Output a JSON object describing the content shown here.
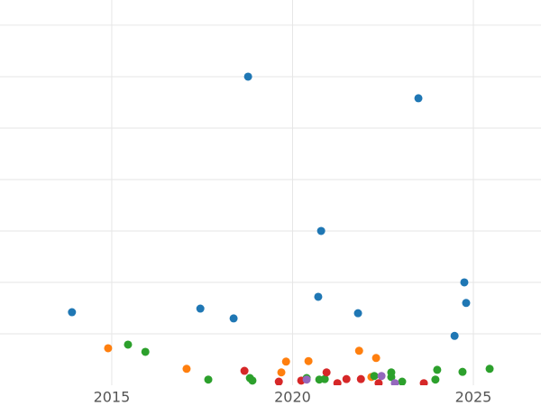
{
  "chart_data": {
    "type": "scatter",
    "xlim": [
      2011.91,
      2026.87
    ],
    "ylim": [
      0,
      7.49
    ],
    "xticks": [
      2015,
      2020,
      2025
    ],
    "ygrid_lines": [
      1,
      2,
      3,
      4,
      5,
      6,
      7
    ],
    "grid": true,
    "series": [
      {
        "color": "#1f77b4",
        "x": [
          2013.9,
          2018.77,
          2023.48,
          2020.79,
          2024.75,
          2020.71,
          2024.8,
          2017.45,
          2018.37,
          2021.81,
          2024.48
        ],
        "values": [
          1.42,
          6.0,
          5.58,
          3.0,
          2.0,
          1.72,
          1.6,
          1.49,
          1.3,
          1.4,
          0.96
        ]
      },
      {
        "color": "#ff7f0e",
        "x": [
          2014.9,
          2017.07,
          2019.69,
          2019.82,
          2020.44,
          2021.84,
          2022.31,
          2022.18
        ],
        "values": [
          0.72,
          0.32,
          0.25,
          0.46,
          0.47,
          0.67,
          0.53,
          0.16
        ]
      },
      {
        "color": "#2ca02c",
        "x": [
          2015.45,
          2015.93,
          2017.67,
          2018.82,
          2018.89,
          2020.39,
          2020.74,
          2020.89,
          2022.26,
          2022.73,
          2022.73,
          2023.03,
          2023.95,
          2024.0,
          2024.7,
          2025.45
        ],
        "values": [
          0.79,
          0.65,
          0.11,
          0.14,
          0.09,
          0.14,
          0.11,
          0.12,
          0.18,
          0.25,
          0.16,
          0.07,
          0.11,
          0.3,
          0.26,
          0.32
        ]
      },
      {
        "color": "#d62728",
        "x": [
          2018.67,
          2019.62,
          2020.24,
          2020.94,
          2021.24,
          2021.49,
          2021.89,
          2022.38,
          2023.63
        ],
        "values": [
          0.28,
          0.07,
          0.09,
          0.25,
          0.04,
          0.12,
          0.12,
          0.04,
          0.04
        ]
      },
      {
        "color": "#9467bd",
        "x": [
          2020.39,
          2022.46,
          2022.83
        ],
        "values": [
          0.11,
          0.18,
          0.04
        ]
      }
    ]
  }
}
